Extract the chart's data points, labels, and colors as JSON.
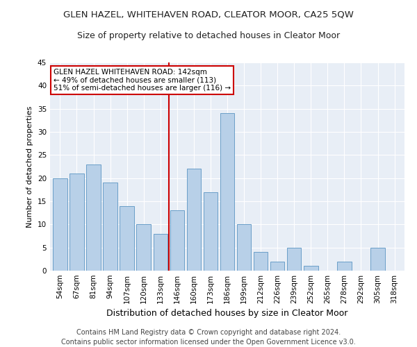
{
  "title1": "GLEN HAZEL, WHITEHAVEN ROAD, CLEATOR MOOR, CA25 5QW",
  "title2": "Size of property relative to detached houses in Cleator Moor",
  "xlabel": "Distribution of detached houses by size in Cleator Moor",
  "ylabel": "Number of detached properties",
  "categories": [
    "54sqm",
    "67sqm",
    "81sqm",
    "94sqm",
    "107sqm",
    "120sqm",
    "133sqm",
    "146sqm",
    "160sqm",
    "173sqm",
    "186sqm",
    "199sqm",
    "212sqm",
    "226sqm",
    "239sqm",
    "252sqm",
    "265sqm",
    "278sqm",
    "292sqm",
    "305sqm",
    "318sqm"
  ],
  "values": [
    20,
    21,
    23,
    19,
    14,
    10,
    8,
    13,
    22,
    17,
    34,
    10,
    4,
    2,
    5,
    1,
    0,
    2,
    0,
    5,
    0
  ],
  "bar_color": "#b8d0e8",
  "bar_edge_color": "#6a9fc8",
  "vline_color": "#cc0000",
  "annotation_text": "GLEN HAZEL WHITEHAVEN ROAD: 142sqm\n← 49% of detached houses are smaller (113)\n51% of semi-detached houses are larger (116) →",
  "annotation_box_color": "#ffffff",
  "annotation_box_edge": "#cc0000",
  "ylim": [
    0,
    45
  ],
  "yticks": [
    0,
    5,
    10,
    15,
    20,
    25,
    30,
    35,
    40,
    45
  ],
  "bg_color": "#e8eef6",
  "footer": "Contains HM Land Registry data © Crown copyright and database right 2024.\nContains public sector information licensed under the Open Government Licence v3.0.",
  "title1_fontsize": 9.5,
  "title2_fontsize": 9,
  "xlabel_fontsize": 9,
  "ylabel_fontsize": 8,
  "footer_fontsize": 7,
  "tick_fontsize": 7.5
}
